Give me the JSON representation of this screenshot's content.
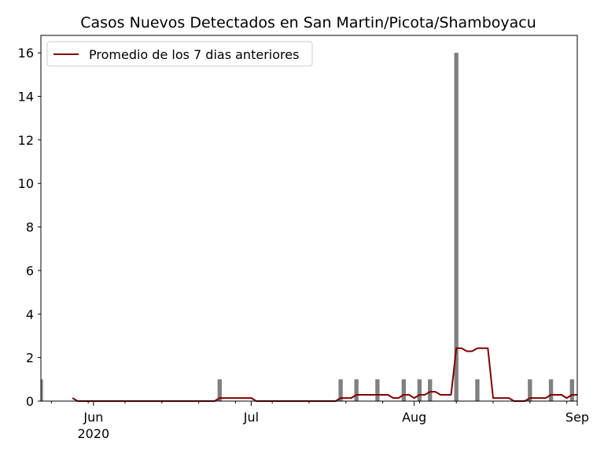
{
  "chart_data": {
    "type": "bar",
    "title": "Casos Nuevos Detectados en San Martin/Picota/Shamboyacu",
    "xlabel": "",
    "ylabel": "",
    "x_range": [
      "2020-05-22",
      "2020-09-01"
    ],
    "ylim": [
      0,
      16.8
    ],
    "yticks": [
      0,
      2,
      4,
      6,
      8,
      10,
      12,
      14,
      16
    ],
    "xticks": [
      {
        "date": "2020-06-01",
        "label": "Jun",
        "sublabel": "2020"
      },
      {
        "date": "2020-07-01",
        "label": "Jul",
        "sublabel": ""
      },
      {
        "date": "2020-08-01",
        "label": "Aug",
        "sublabel": ""
      },
      {
        "date": "2020-09-01",
        "label": "Sep",
        "sublabel": ""
      }
    ],
    "grid": false,
    "legend_position": "top-left",
    "bar_color": "#808080",
    "line_color": "#800000",
    "bars": {
      "name": "Casos Nuevos",
      "dates": [
        "2020-05-22",
        "2020-06-25",
        "2020-07-18",
        "2020-07-21",
        "2020-07-25",
        "2020-07-30",
        "2020-08-02",
        "2020-08-04",
        "2020-08-09",
        "2020-08-13",
        "2020-08-23",
        "2020-08-27",
        "2020-08-31"
      ],
      "values": [
        1,
        1,
        1,
        1,
        1,
        1,
        1,
        1,
        16,
        1,
        1,
        1,
        1
      ]
    },
    "line": {
      "name": "Promedio de los 7 dias anteriores",
      "points": [
        [
          "2020-05-28",
          0.14
        ],
        [
          "2020-05-29",
          0.0
        ],
        [
          "2020-06-24",
          0.0
        ],
        [
          "2020-06-25",
          0.14
        ],
        [
          "2020-07-01",
          0.14
        ],
        [
          "2020-07-02",
          0.0
        ],
        [
          "2020-07-17",
          0.0
        ],
        [
          "2020-07-18",
          0.14
        ],
        [
          "2020-07-20",
          0.14
        ],
        [
          "2020-07-21",
          0.29
        ],
        [
          "2020-07-24",
          0.29
        ],
        [
          "2020-07-25",
          0.29
        ],
        [
          "2020-07-27",
          0.29
        ],
        [
          "2020-07-28",
          0.14
        ],
        [
          "2020-07-29",
          0.14
        ],
        [
          "2020-07-30",
          0.29
        ],
        [
          "2020-07-31",
          0.29
        ],
        [
          "2020-08-01",
          0.14
        ],
        [
          "2020-08-02",
          0.29
        ],
        [
          "2020-08-03",
          0.29
        ],
        [
          "2020-08-04",
          0.43
        ],
        [
          "2020-08-05",
          0.43
        ],
        [
          "2020-08-06",
          0.29
        ],
        [
          "2020-08-08",
          0.29
        ],
        [
          "2020-08-09",
          2.43
        ],
        [
          "2020-08-10",
          2.43
        ],
        [
          "2020-08-11",
          2.29
        ],
        [
          "2020-08-12",
          2.29
        ],
        [
          "2020-08-13",
          2.43
        ],
        [
          "2020-08-15",
          2.43
        ],
        [
          "2020-08-16",
          0.14
        ],
        [
          "2020-08-19",
          0.14
        ],
        [
          "2020-08-20",
          0.0
        ],
        [
          "2020-08-22",
          0.0
        ],
        [
          "2020-08-23",
          0.14
        ],
        [
          "2020-08-26",
          0.14
        ],
        [
          "2020-08-27",
          0.29
        ],
        [
          "2020-08-29",
          0.29
        ],
        [
          "2020-08-30",
          0.14
        ],
        [
          "2020-08-31",
          0.29
        ],
        [
          "2020-09-01",
          0.29
        ]
      ]
    }
  }
}
